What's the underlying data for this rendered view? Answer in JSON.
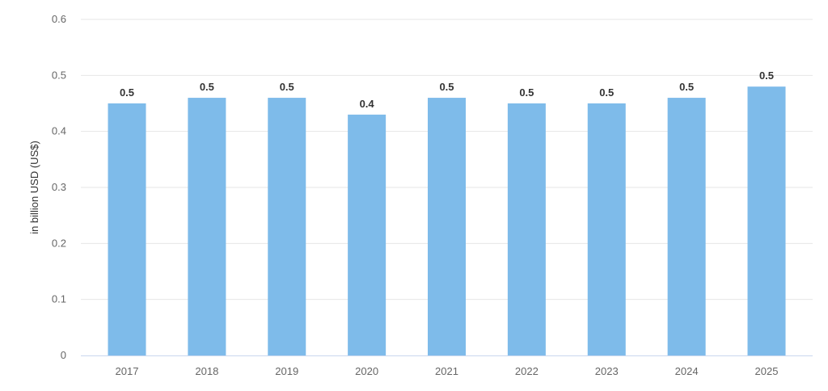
{
  "chart_data": {
    "type": "bar",
    "categories": [
      "2017",
      "2018",
      "2019",
      "2020",
      "2021",
      "2022",
      "2023",
      "2024",
      "2025"
    ],
    "values": [
      0.45,
      0.46,
      0.46,
      0.43,
      0.46,
      0.45,
      0.45,
      0.46,
      0.48
    ],
    "data_labels": [
      "0.5",
      "0.5",
      "0.5",
      "0.4",
      "0.5",
      "0.5",
      "0.5",
      "0.5",
      "0.5"
    ],
    "yticks": [
      "0",
      "0.1",
      "0.2",
      "0.3",
      "0.4",
      "0.5",
      "0.6"
    ],
    "ylabel": "in billion USD (US$)",
    "xlabel": "",
    "title": "",
    "ylim": [
      0,
      0.6
    ],
    "grid": true,
    "colors": {
      "bar": "#7ebbea",
      "grid": "#e6e6e6",
      "axis": "#c9d7ef"
    }
  }
}
